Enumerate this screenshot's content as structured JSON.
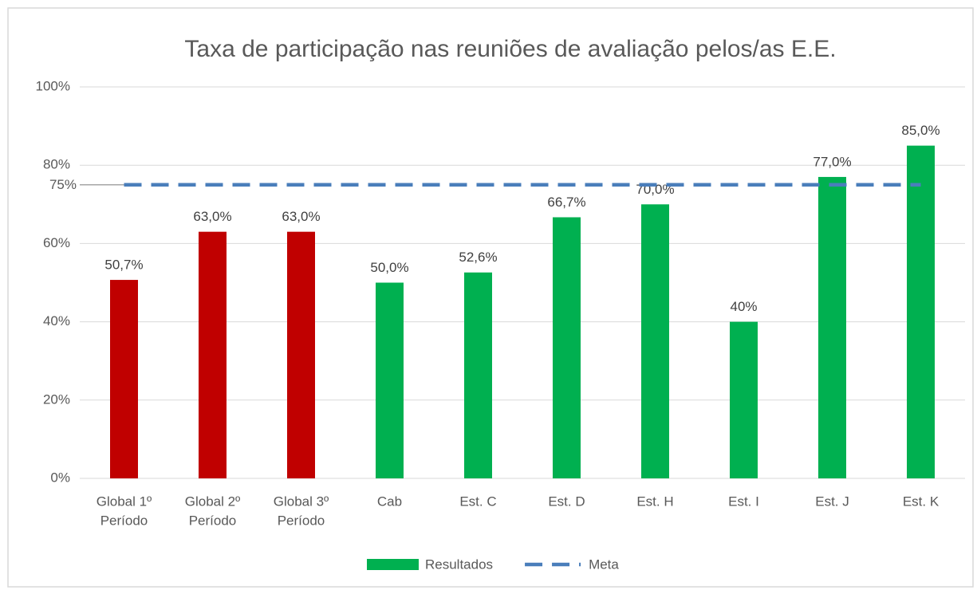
{
  "chart_data": {
    "type": "bar",
    "title": "Taxa de participação nas reuniões de avaliação pelos/as E.E.",
    "categories": [
      [
        "Global  1º",
        "Período"
      ],
      [
        "Global 2º",
        "Período"
      ],
      [
        "Global 3º",
        "Período"
      ],
      [
        "Cab"
      ],
      [
        "Est. C"
      ],
      [
        "Est. D"
      ],
      [
        "Est. H"
      ],
      [
        "Est. I"
      ],
      [
        "Est. J"
      ],
      [
        "Est. K"
      ]
    ],
    "series": [
      {
        "name": "Resultados",
        "type": "bar",
        "color": "#00b050",
        "colors": [
          "#c00000",
          "#c00000",
          "#c00000",
          "#00b050",
          "#00b050",
          "#00b050",
          "#00b050",
          "#00b050",
          "#00b050",
          "#00b050"
        ],
        "values": [
          50.7,
          63,
          63,
          50,
          52.6,
          66.7,
          70,
          40,
          77,
          85
        ],
        "value_labels": [
          "50,7%",
          "63,0%",
          "63,0%",
          "50,0%",
          "52,6%",
          "66,7%",
          "70,0%",
          "40%",
          "77,0%",
          "85,0%"
        ]
      },
      {
        "name": "Meta",
        "type": "line",
        "color": "#4a7ebb",
        "dashed": true,
        "values": [
          75,
          75,
          75,
          75,
          75,
          75,
          75,
          75,
          75,
          75
        ]
      }
    ],
    "meta_label": {
      "value": 75,
      "label": "75%"
    },
    "ylim": [
      0,
      100
    ],
    "yticks": [
      {
        "value": 0,
        "label": "0%"
      },
      {
        "value": 20,
        "label": "20%"
      },
      {
        "value": 40,
        "label": "40%"
      },
      {
        "value": 60,
        "label": "60%"
      },
      {
        "value": 80,
        "label": "80%"
      },
      {
        "value": 100,
        "label": "100%"
      }
    ],
    "grid": true,
    "legend": "bottom"
  }
}
